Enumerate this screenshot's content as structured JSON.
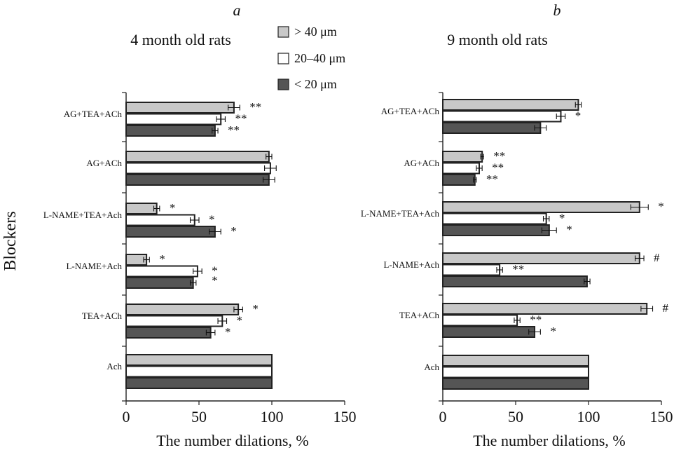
{
  "legend": [
    {
      "label": "> 40 μm",
      "color": "#c8c8c8"
    },
    {
      "label": "20–40 μm",
      "color": "#ffffff"
    },
    {
      "label": "< 20 μm",
      "color": "#555555"
    }
  ],
  "shared": {
    "ylabel": "Blockers",
    "xlabel": "The number dilations, %"
  },
  "chart_data": [
    {
      "type": "bar",
      "orientation": "horizontal",
      "panel_letter": "a",
      "title": "4 month old rats",
      "xlabel": "The number dilations, %",
      "ylabel": "Blockers",
      "xlim": [
        0,
        150
      ],
      "xticks": [
        "0",
        "50",
        "100",
        "150"
      ],
      "categories": [
        "AG+TEA+ACh",
        "AG+ACh",
        "L-NAME+TEA+Ach",
        "L-NAME+Ach",
        "TEA+ACh",
        "Ach"
      ],
      "series": [
        {
          "name": "> 40 μm",
          "color": "#c8c8c8",
          "values": [
            74,
            98,
            21,
            14,
            77,
            100
          ],
          "errors": [
            4,
            2,
            2,
            2,
            3,
            0
          ],
          "marks": [
            "**",
            "",
            "*",
            "*",
            "*",
            ""
          ]
        },
        {
          "name": "20–40 μm",
          "color": "#ffffff",
          "values": [
            65,
            99,
            47,
            49,
            66,
            100
          ],
          "errors": [
            3,
            4,
            3,
            3,
            3,
            0
          ],
          "marks": [
            "**",
            "",
            "*",
            "*\n*",
            "*",
            ""
          ]
        },
        {
          "name": "< 20 μm",
          "color": "#555555",
          "values": [
            61,
            98,
            61,
            46,
            58,
            100
          ],
          "errors": [
            2,
            4,
            4,
            2,
            3,
            0
          ],
          "marks": [
            "**",
            "",
            "*",
            "",
            "*",
            ""
          ]
        }
      ]
    },
    {
      "type": "bar",
      "orientation": "horizontal",
      "panel_letter": "b",
      "title": "9 month old rats",
      "xlabel": "The number dilations, %",
      "ylabel": "Blockers",
      "xlim": [
        0,
        150
      ],
      "xticks": [
        "0",
        "50",
        "100",
        "150"
      ],
      "categories": [
        "AG+TEA+ACh",
        "AG+ACh",
        "L-NAME+TEA+Ach",
        "L-NAME+Ach",
        "TEA+ACh",
        "Ach"
      ],
      "series": [
        {
          "name": "> 40 μm",
          "color": "#c8c8c8",
          "values": [
            93,
            27,
            135,
            135,
            140,
            100
          ],
          "errors": [
            2,
            1,
            6,
            3,
            4,
            0
          ],
          "marks": [
            "",
            "**",
            "*",
            "#",
            "#",
            ""
          ]
        },
        {
          "name": "20–40 μm",
          "color": "#ffffff",
          "values": [
            81,
            25,
            71,
            39,
            51,
            100
          ],
          "errors": [
            3,
            2,
            2,
            2,
            2,
            0
          ],
          "marks": [
            "*",
            "**",
            "*",
            "**",
            "**",
            ""
          ]
        },
        {
          "name": "< 20 μm",
          "color": "#555555",
          "values": [
            67,
            22,
            73,
            99,
            63,
            100
          ],
          "errors": [
            4,
            1,
            5,
            2,
            4,
            0
          ],
          "marks": [
            "",
            "**",
            "*",
            "",
            "*",
            ""
          ]
        }
      ]
    }
  ]
}
